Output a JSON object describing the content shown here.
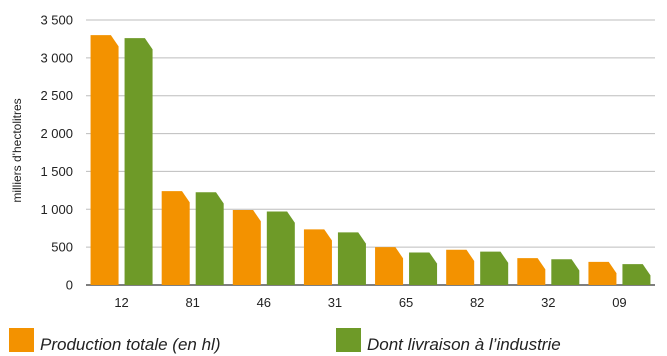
{
  "chart_data": {
    "type": "bar",
    "ylabel": "milliers d'hectolitres",
    "ylim": [
      0,
      3500
    ],
    "yticks": [
      0,
      500,
      1000,
      1500,
      2000,
      2500,
      3000,
      3500
    ],
    "ytick_labels": [
      "0",
      "500",
      "1 000",
      "1 500",
      "2 000",
      "2 500",
      "3 000",
      "3 500"
    ],
    "grid": true,
    "legend_position": "bottom",
    "categories": [
      "12",
      "81",
      "46",
      "31",
      "65",
      "82",
      "32",
      "09"
    ],
    "series": [
      {
        "name": "Production totale (en hl)",
        "color": "#F39200",
        "values": [
          3300,
          1240,
          990,
          735,
          500,
          465,
          355,
          305
        ]
      },
      {
        "name": "Dont livraison à l’industrie",
        "color": "#6E9A28",
        "values": [
          3260,
          1225,
          970,
          695,
          430,
          440,
          340,
          275
        ]
      }
    ]
  },
  "colors": {
    "grid": "#BDBDBD",
    "axis": "#333333",
    "text": "#222222"
  }
}
